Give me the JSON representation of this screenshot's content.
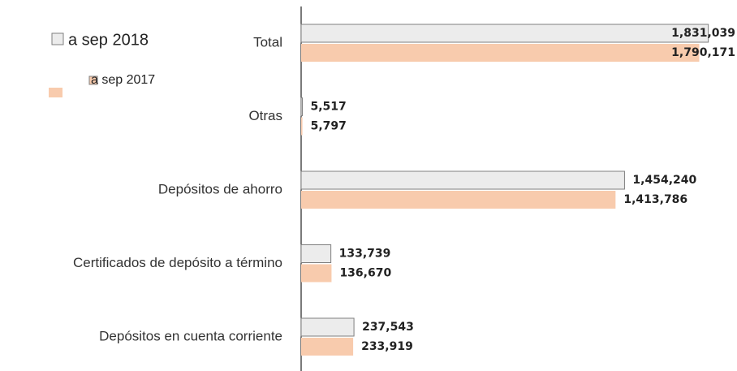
{
  "chart_data": {
    "type": "bar",
    "orientation": "horizontal",
    "categories": [
      "Total",
      "Otras",
      "Depósitos de ahorro",
      "Certificados de depósito a término",
      "Depósitos en cuenta corriente"
    ],
    "series": [
      {
        "name": "a sep 2018",
        "color": "#ececec",
        "values": [
          1831039,
          5517,
          1454240,
          133739,
          237543
        ],
        "value_labels": [
          "1,831,039",
          "5,517",
          "1,454,240",
          "133,739",
          "237,543"
        ]
      },
      {
        "name": "a sep 2017",
        "color": "#f8cbad",
        "values": [
          1790171,
          5797,
          1413786,
          136670,
          233919
        ],
        "value_labels": [
          "1,790,171",
          "5,797",
          "1,413,786",
          "136,670",
          "233,919"
        ]
      }
    ],
    "xlim": [
      0,
      1960000
    ]
  }
}
